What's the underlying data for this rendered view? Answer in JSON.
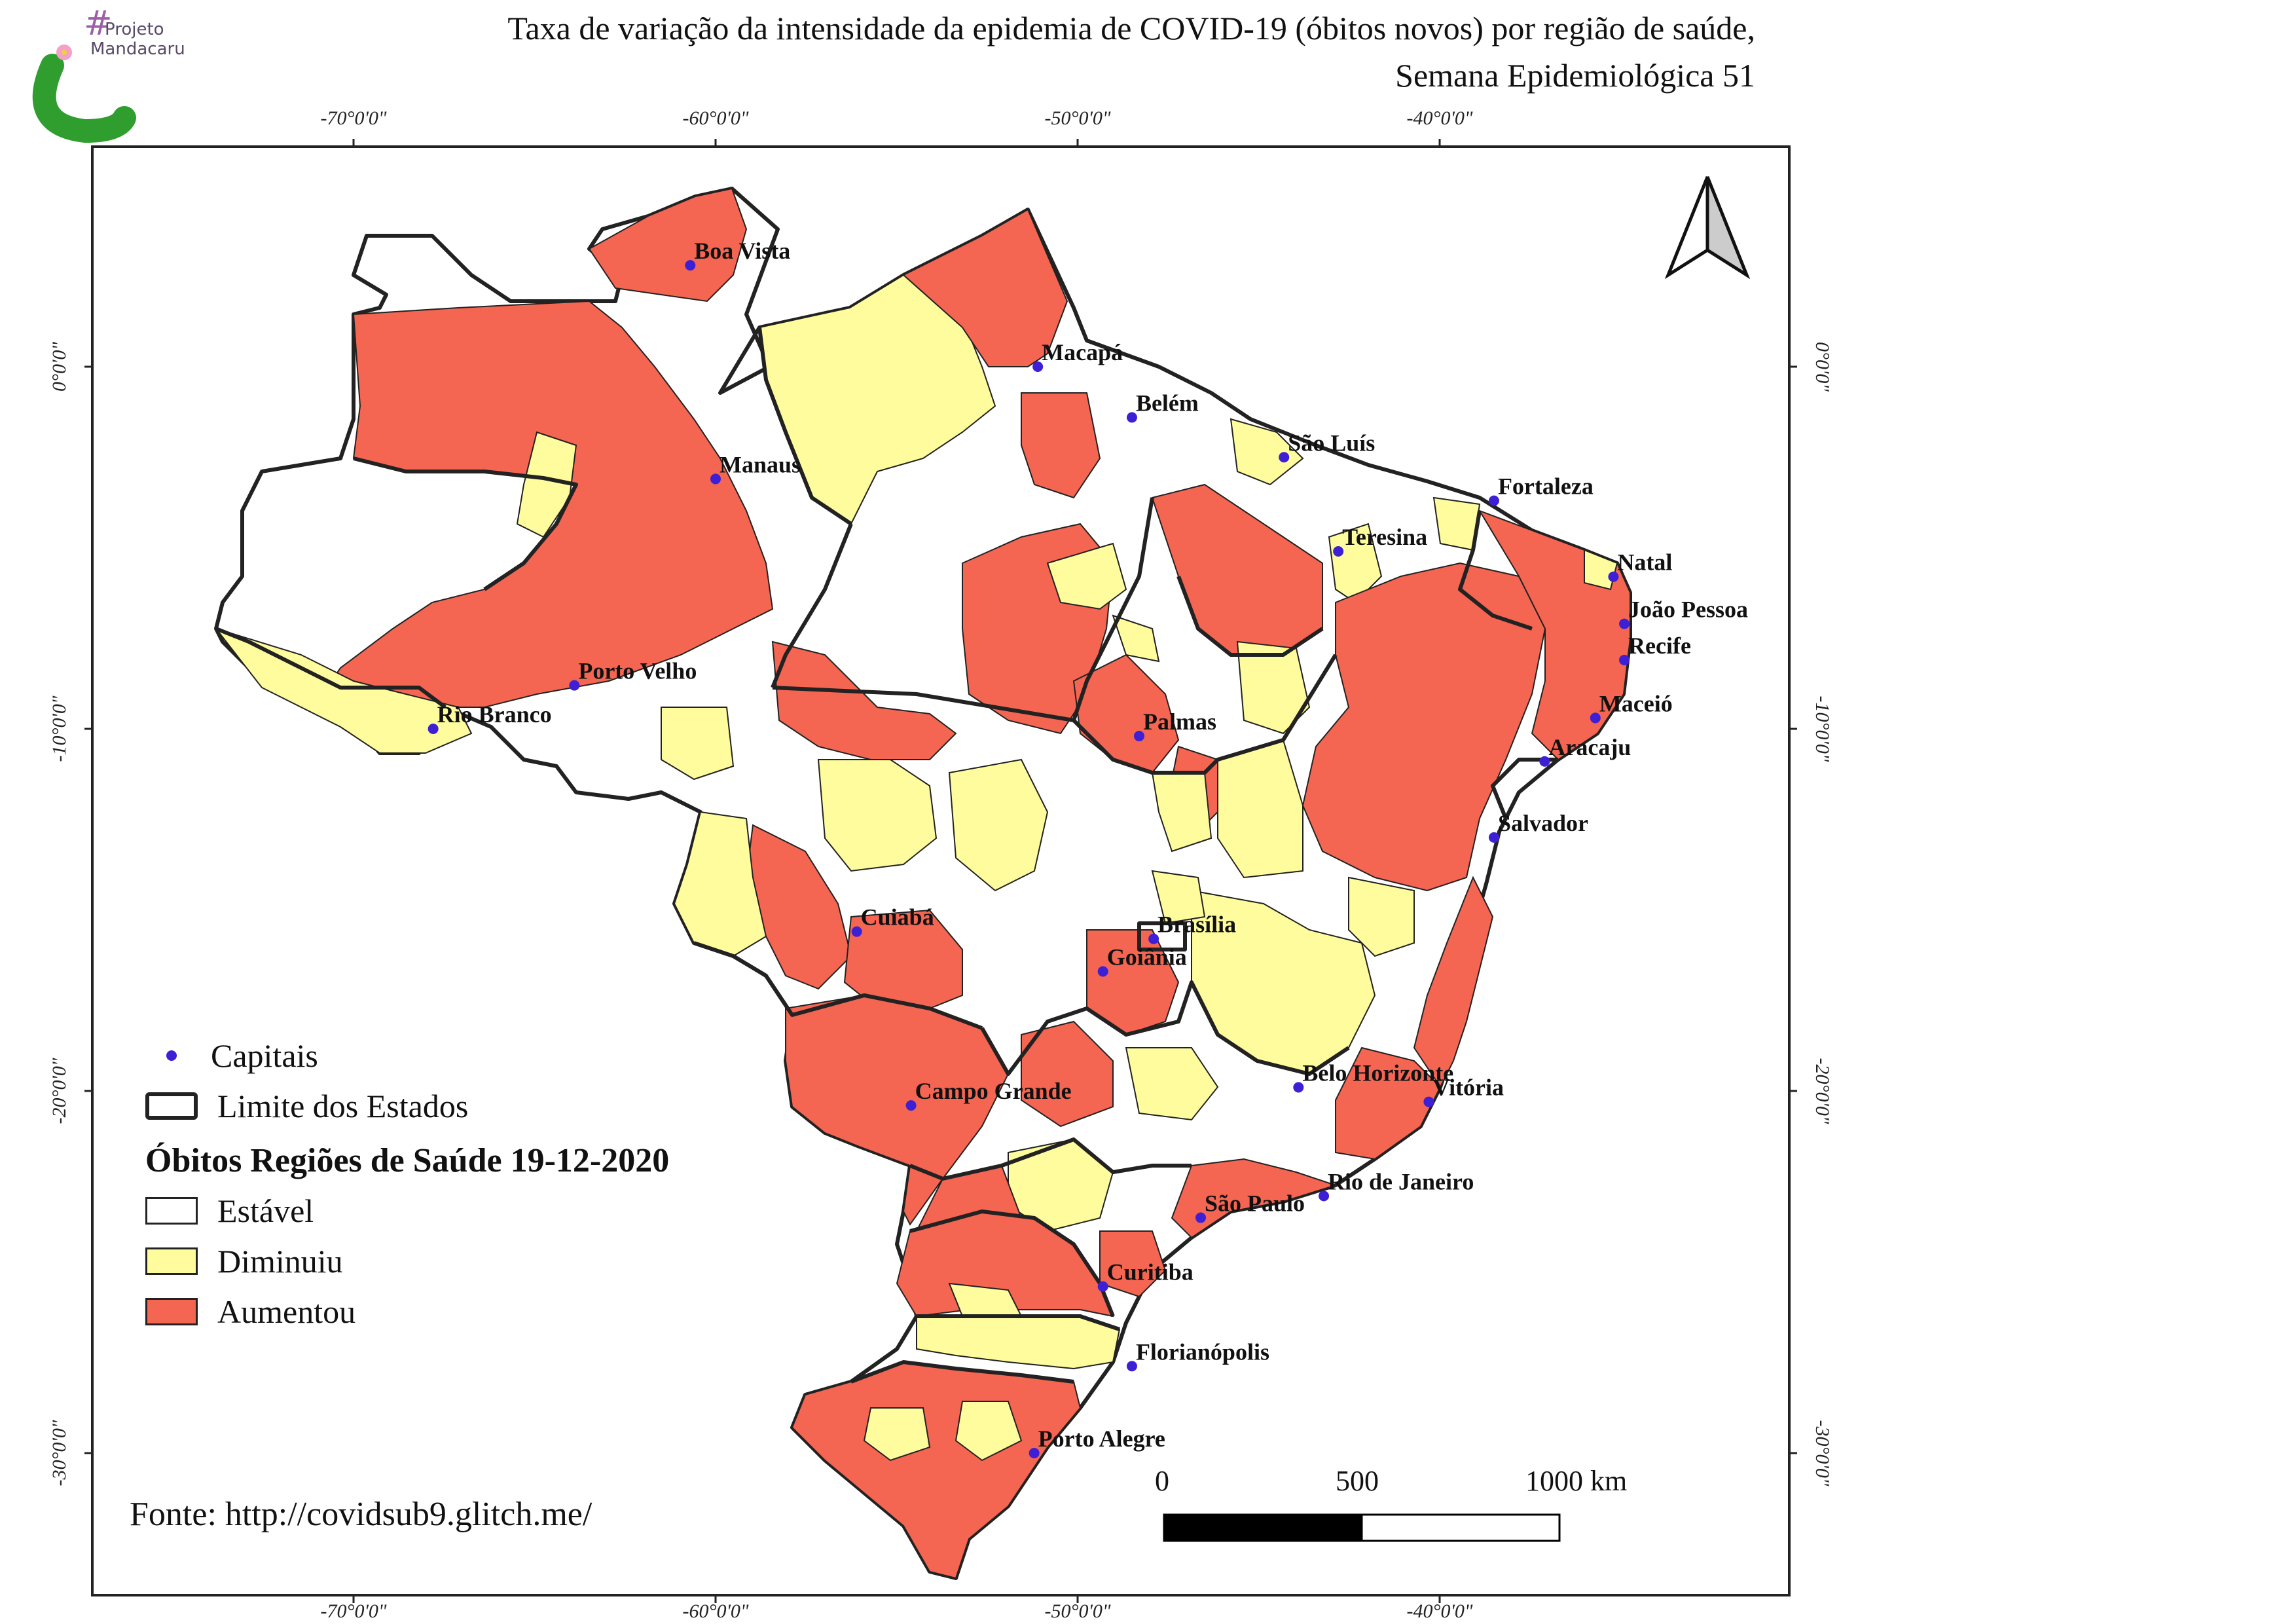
{
  "title_line1": "Taxa de variação da intensidade da epidemia de COVID-19 (óbitos novos) por região de saúde,",
  "title_line2": "Semana Epidemiológica 51",
  "logo": {
    "hash": "#",
    "line1": "Projeto",
    "line2": "Mandacaru"
  },
  "graticule": {
    "lon_labels": [
      "-70°0'0\"",
      "-60°0'0\"",
      "-50°0'0\"",
      "-40°0'0\""
    ],
    "lat_labels": [
      "0°0'0\"",
      "-10°0'0\"",
      "-20°0'0\"",
      "-30°0'0\""
    ]
  },
  "legend": {
    "capitals_label": "Capitais",
    "state_limits_label": "Limite dos Estados",
    "heading": "Óbitos Regiões de Saúde 19-12-2020",
    "classes": [
      {
        "label": "Estável",
        "color": "#ffffff"
      },
      {
        "label": "Diminuiu",
        "color": "#fefc9c"
      },
      {
        "label": "Aumentou",
        "color": "#f46552"
      }
    ]
  },
  "scale_bar": {
    "labels": [
      "0",
      "500",
      "1000 km"
    ]
  },
  "source": "Fonte: http://covidsub9.glitch.me/",
  "capitals": [
    {
      "name": "Boa Vista",
      "lon": -60.7,
      "lat": 2.8
    },
    {
      "name": "Macapá",
      "lon": -51.1,
      "lat": 0.0
    },
    {
      "name": "Belém",
      "lon": -48.5,
      "lat": -1.4
    },
    {
      "name": "São Luís",
      "lon": -44.3,
      "lat": -2.5
    },
    {
      "name": "Manaus",
      "lon": -60.0,
      "lat": -3.1
    },
    {
      "name": "Fortaleza",
      "lon": -38.5,
      "lat": -3.7
    },
    {
      "name": "Teresina",
      "lon": -42.8,
      "lat": -5.1
    },
    {
      "name": "Natal",
      "lon": -35.2,
      "lat": -5.8
    },
    {
      "name": "João Pessoa",
      "lon": -34.9,
      "lat": -7.1
    },
    {
      "name": "Recife",
      "lon": -34.9,
      "lat": -8.1
    },
    {
      "name": "Porto Velho",
      "lon": -63.9,
      "lat": -8.8
    },
    {
      "name": "Maceió",
      "lon": -35.7,
      "lat": -9.7
    },
    {
      "name": "Rio Branco",
      "lon": -67.8,
      "lat": -10.0
    },
    {
      "name": "Palmas",
      "lon": -48.3,
      "lat": -10.2
    },
    {
      "name": "Aracaju",
      "lon": -37.1,
      "lat": -10.9
    },
    {
      "name": "Salvador",
      "lon": -38.5,
      "lat": -13.0
    },
    {
      "name": "Cuiabá",
      "lon": -56.1,
      "lat": -15.6
    },
    {
      "name": "Brasília",
      "lon": -47.9,
      "lat": -15.8
    },
    {
      "name": "Goiânia",
      "lon": -49.3,
      "lat": -16.7
    },
    {
      "name": "Belo Horizonte",
      "lon": -43.9,
      "lat": -19.9
    },
    {
      "name": "Vitória",
      "lon": -40.3,
      "lat": -20.3
    },
    {
      "name": "Campo Grande",
      "lon": -54.6,
      "lat": -20.4
    },
    {
      "name": "Rio de Janeiro",
      "lon": -43.2,
      "lat": -22.9
    },
    {
      "name": "São Paulo",
      "lon": -46.6,
      "lat": -23.5
    },
    {
      "name": "Curitiba",
      "lon": -49.3,
      "lat": -25.4
    },
    {
      "name": "Florianópolis",
      "lon": -48.5,
      "lat": -27.6
    },
    {
      "name": "Porto Alegre",
      "lon": -51.2,
      "lat": -30.0
    }
  ]
}
